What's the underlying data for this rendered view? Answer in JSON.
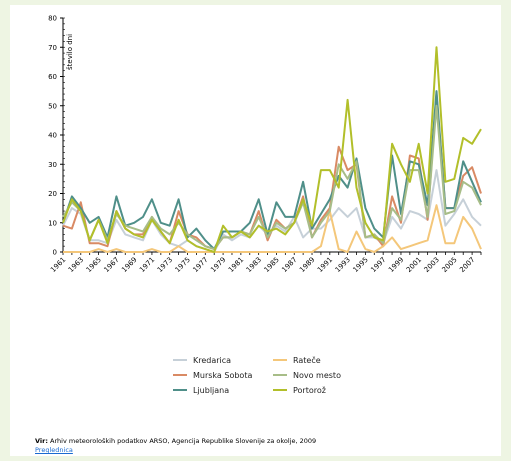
{
  "chart_data": {
    "type": "line",
    "ylabel": "število dni",
    "ylim": [
      0,
      80
    ],
    "yticks": [
      0,
      10,
      20,
      30,
      40,
      50,
      60,
      70,
      80
    ],
    "x": [
      1961,
      1962,
      1963,
      1964,
      1965,
      1966,
      1967,
      1968,
      1969,
      1970,
      1971,
      1972,
      1973,
      1974,
      1975,
      1976,
      1977,
      1978,
      1979,
      1980,
      1981,
      1982,
      1983,
      1984,
      1985,
      1986,
      1987,
      1988,
      1989,
      1990,
      1991,
      1992,
      1993,
      1994,
      1995,
      1996,
      1997,
      1998,
      1999,
      2000,
      2001,
      2002,
      2003,
      2004,
      2005,
      2006,
      2007,
      2008
    ],
    "xticks": [
      "1961",
      "1963",
      "1965",
      "1967",
      "1969",
      "1971",
      "1973",
      "1975",
      "1977",
      "1979",
      "1981",
      "1983",
      "1985",
      "1987",
      "1989",
      "1991",
      "1993",
      "1995",
      "1997",
      "1999",
      "2001",
      "2003",
      "2005",
      "2007"
    ],
    "series": [
      {
        "name": "Kredarica",
        "color": "#c6d0d8",
        "values": [
          9,
          15,
          13,
          4,
          4,
          3,
          11,
          6,
          5,
          4,
          11,
          6,
          3,
          2,
          4,
          2,
          1,
          0,
          6,
          4,
          6,
          5,
          9,
          6,
          9,
          7,
          12,
          5,
          8,
          8,
          11,
          15,
          12,
          15,
          5,
          5,
          3,
          12,
          8,
          14,
          13,
          11,
          28,
          9,
          13,
          18,
          12,
          9
        ]
      },
      {
        "name": "Murska Sobota",
        "color": "#d98a64",
        "values": [
          9,
          8,
          17,
          3,
          3,
          2,
          14,
          8,
          6,
          6,
          12,
          7,
          3,
          14,
          6,
          5,
          2,
          1,
          5,
          5,
          7,
          6,
          14,
          4,
          11,
          8,
          10,
          19,
          5,
          11,
          15,
          36,
          28,
          30,
          5,
          6,
          2,
          19,
          10,
          33,
          32,
          11,
          54,
          15,
          15,
          26,
          29,
          20
        ]
      },
      {
        "name": "Ljubljana",
        "color": "#4f8f89",
        "values": [
          10,
          19,
          15,
          10,
          12,
          5,
          19,
          9,
          10,
          12,
          18,
          10,
          9,
          18,
          5,
          8,
          4,
          1,
          7,
          7,
          7,
          10,
          18,
          6,
          17,
          12,
          12,
          24,
          8,
          13,
          18,
          26,
          22,
          32,
          15,
          8,
          5,
          33,
          13,
          31,
          30,
          16,
          55,
          15,
          15,
          31,
          24,
          17
        ]
      },
      {
        "name": "Rateče",
        "color": "#f4c77a",
        "values": [
          0,
          0,
          0,
          0,
          1,
          0,
          1,
          0,
          0,
          0,
          1,
          0,
          0,
          2,
          0,
          0,
          0,
          0,
          0,
          0,
          0,
          0,
          0,
          0,
          0,
          0,
          0,
          0,
          0,
          2,
          14,
          1,
          0,
          7,
          1,
          0,
          2,
          5,
          1,
          2,
          3,
          4,
          16,
          3,
          3,
          12,
          8,
          1
        ]
      },
      {
        "name": "Novo mesto",
        "color": "#a7bd88",
        "values": [
          12,
          17,
          14,
          4,
          11,
          4,
          13,
          9,
          8,
          7,
          12,
          8,
          6,
          10,
          6,
          4,
          2,
          1,
          5,
          5,
          7,
          6,
          12,
          5,
          10,
          8,
          10,
          17,
          5,
          10,
          14,
          30,
          25,
          31,
          5,
          6,
          3,
          15,
          11,
          28,
          28,
          12,
          50,
          13,
          14,
          24,
          22,
          16
        ]
      },
      {
        "name": "Portorož",
        "color": "#b2bf2a",
        "values": [
          10,
          18,
          14,
          4,
          11,
          3,
          14,
          8,
          6,
          5,
          11,
          7,
          3,
          11,
          4,
          2,
          1,
          0,
          9,
          5,
          7,
          5,
          9,
          7,
          8,
          6,
          10,
          18,
          9,
          28,
          28,
          22,
          52,
          22,
          10,
          5,
          4,
          37,
          30,
          24,
          37,
          20,
          70,
          24,
          25,
          39,
          37,
          42
        ]
      }
    ]
  },
  "legend": [
    {
      "label": "Kredarica",
      "color": "#c6d0d8"
    },
    {
      "label": "Rateče",
      "color": "#f4c77a"
    },
    {
      "label": "Murska Sobota",
      "color": "#d98a64"
    },
    {
      "label": "Novo mesto",
      "color": "#a7bd88"
    },
    {
      "label": "Ljubljana",
      "color": "#4f8f89"
    },
    {
      "label": "Portorož",
      "color": "#b2bf2a"
    }
  ],
  "source": {
    "prefix": "Vir:",
    "text": " Arhiv meteoroloških podatkov ARSO, Agencija Republike Slovenije za okolje, 2009",
    "link": "Preglednica"
  }
}
